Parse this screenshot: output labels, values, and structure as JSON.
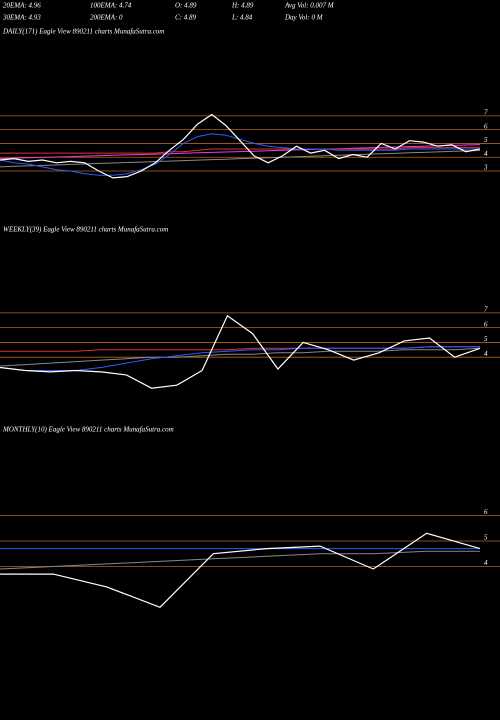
{
  "header": [
    [
      "20EMA: 4.96",
      "100EMA: 4.74",
      "O: 4.89",
      "H: 4.89",
      "Avg Vol: 0.007 M"
    ],
    [
      "30EMA: 4.93",
      "200EMA: 0",
      "C: 4.89",
      "L: 4.84",
      "Day Vol: 0  M"
    ]
  ],
  "chart_data": [
    {
      "type": "line",
      "title": "DAILY(171) Eagle  View  890211 charts MunafaSutra.com",
      "ylim": [
        0.9,
        8.15
      ],
      "yticks": [
        7,
        6,
        5,
        4,
        3
      ],
      "grid": true,
      "grid_color": "#b8621a",
      "series": [
        {
          "color": "#888888",
          "values": [
            3.3,
            3.34,
            3.37,
            3.41,
            3.44,
            3.48,
            3.51,
            3.55,
            3.58,
            3.62,
            3.65,
            3.69,
            3.72,
            3.76,
            3.79,
            3.83,
            3.86,
            3.9,
            3.93,
            3.97,
            4.0,
            4.04,
            4.07,
            4.11,
            4.14,
            4.18,
            4.21,
            4.25,
            4.28,
            4.32,
            4.35,
            4.39,
            4.42,
            4.46,
            4.49
          ]
        },
        {
          "color": "#e040e0",
          "values": [
            3.9,
            3.93,
            3.96,
            3.99,
            4.02,
            4.05,
            4.08,
            4.11,
            4.14,
            4.17,
            4.2,
            4.23,
            4.26,
            4.29,
            4.32,
            4.35,
            4.38,
            4.41,
            4.44,
            4.47,
            4.5,
            4.53,
            4.56,
            4.59,
            4.62,
            4.65,
            4.68,
            4.71,
            4.74,
            4.77,
            4.8,
            4.83,
            4.86,
            4.89,
            4.92
          ]
        },
        {
          "color": "#e03030",
          "values": [
            4.3,
            4.3,
            4.3,
            4.3,
            4.3,
            4.3,
            4.3,
            4.3,
            4.3,
            4.3,
            4.3,
            4.3,
            4.4,
            4.4,
            4.5,
            4.6,
            4.6,
            4.6,
            4.6,
            4.6,
            4.6,
            4.6,
            4.6,
            4.6,
            4.6,
            4.6,
            4.6,
            4.6,
            4.6,
            4.7,
            4.7,
            4.7,
            4.7,
            4.7,
            4.7
          ]
        },
        {
          "color": "#2a5cff",
          "values": [
            3.8,
            3.6,
            3.5,
            3.3,
            3.1,
            3.0,
            2.8,
            2.7,
            2.7,
            2.8,
            3.1,
            3.5,
            4.2,
            5.0,
            5.5,
            5.7,
            5.6,
            5.3,
            5.0,
            4.8,
            4.7,
            4.6,
            4.6,
            4.6,
            4.5,
            4.5,
            4.5,
            4.5,
            4.5,
            4.6,
            4.6,
            4.6,
            4.6,
            4.6,
            4.6
          ]
        },
        {
          "color": "#ffffff",
          "values": [
            3.8,
            3.9,
            3.7,
            3.8,
            3.6,
            3.7,
            3.6,
            3.0,
            2.5,
            2.6,
            3.0,
            3.6,
            4.5,
            5.3,
            6.4,
            7.1,
            6.3,
            5.2,
            4.1,
            3.6,
            4.1,
            4.8,
            4.3,
            4.5,
            3.9,
            4.2,
            4.0,
            5.0,
            4.6,
            5.2,
            5.1,
            4.8,
            4.9,
            4.4,
            4.6
          ]
        }
      ]
    },
    {
      "type": "line",
      "title": "WEEKLY(39) Eagle  View  890211 charts MunafaSutra.com",
      "ylim": [
        1.1,
        8.55
      ],
      "yticks": [
        7,
        6,
        5,
        4
      ],
      "grid": true,
      "grid_color": "#b8621a",
      "series": [
        {
          "color": "#888888",
          "values": [
            3.4,
            3.5,
            3.6,
            3.7,
            3.8,
            3.9,
            4.0,
            4.0,
            4.1,
            4.2,
            4.2,
            4.3,
            4.3,
            4.4,
            4.4,
            4.4,
            4.5,
            4.5,
            4.5,
            4.6
          ]
        },
        {
          "color": "#e03030",
          "values": [
            4.4,
            4.4,
            4.4,
            4.4,
            4.5,
            4.5,
            4.5,
            4.5,
            4.5,
            4.5,
            4.6,
            4.6,
            4.6,
            4.6,
            4.6,
            4.6,
            4.6,
            4.7,
            4.7,
            4.7
          ]
        },
        {
          "color": "#2a5cff",
          "values": [
            3.3,
            3.1,
            3.1,
            3.1,
            3.3,
            3.6,
            3.9,
            4.1,
            4.3,
            4.4,
            4.5,
            4.5,
            4.6,
            4.6,
            4.6,
            4.6,
            4.6,
            4.7,
            4.7,
            4.7
          ]
        },
        {
          "color": "#ffffff",
          "values": [
            3.3,
            3.1,
            3.0,
            3.1,
            3.0,
            2.8,
            1.9,
            2.1,
            3.1,
            6.8,
            5.6,
            3.2,
            5.0,
            4.5,
            3.8,
            4.3,
            5.1,
            5.3,
            4.0,
            4.6
          ]
        }
      ]
    },
    {
      "type": "line",
      "title": "MONTHLY(10) Eagle  View  890211 charts MunafaSutra.com",
      "ylim": [
        1.9,
        7
      ],
      "yticks": [
        6,
        5,
        4
      ],
      "grid": true,
      "grid_color": "#b8621a",
      "series": [
        {
          "color": "#888888",
          "values": [
            3.9,
            4.0,
            4.1,
            4.2,
            4.3,
            4.4,
            4.5,
            4.5,
            4.6,
            4.6
          ]
        },
        {
          "color": "#2a5cff",
          "values": [
            4.7,
            4.7,
            4.7,
            4.7,
            4.7,
            4.7,
            4.7,
            4.7,
            4.7,
            4.7
          ]
        },
        {
          "color": "#ffffff",
          "values": [
            3.7,
            3.7,
            3.2,
            2.4,
            4.5,
            4.7,
            4.8,
            3.9,
            5.3,
            4.7
          ]
        }
      ]
    }
  ]
}
